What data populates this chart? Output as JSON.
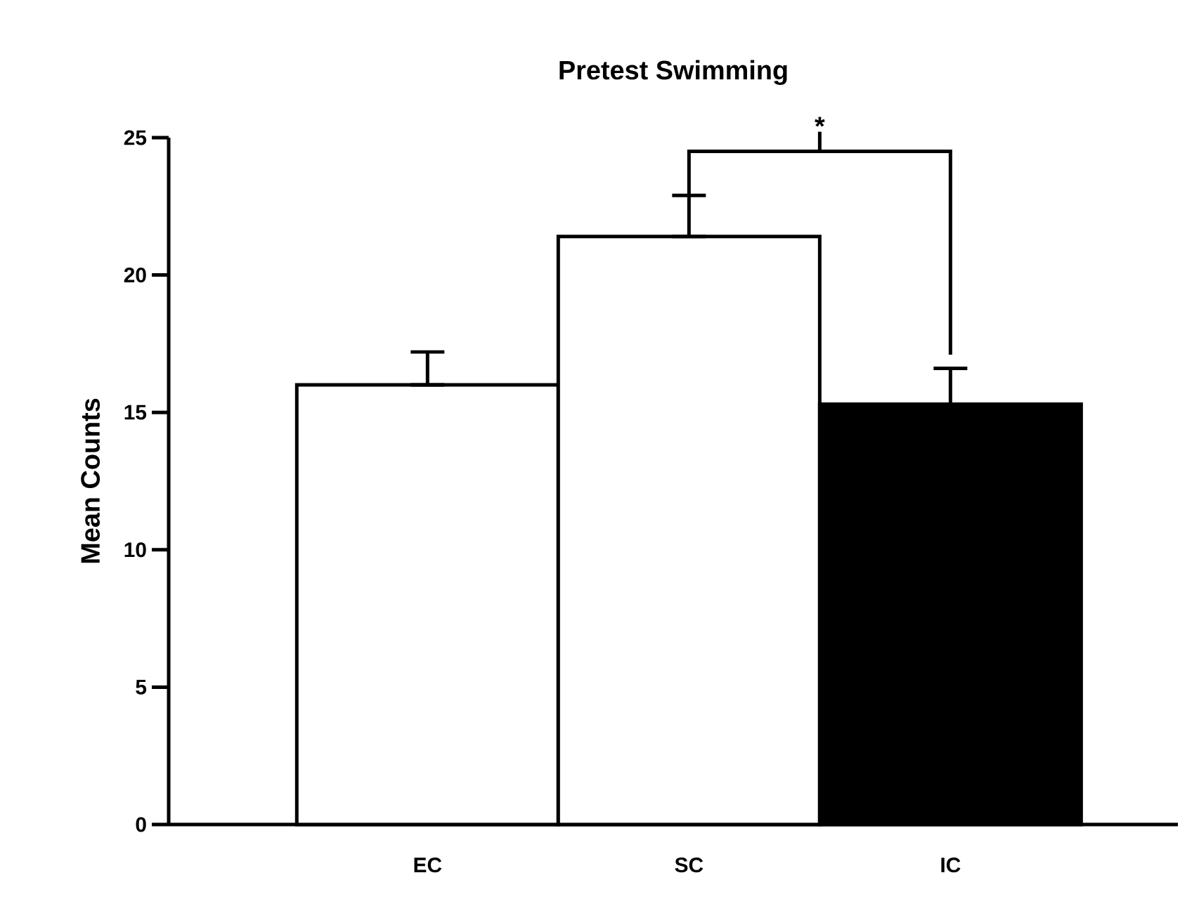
{
  "chart_data": {
    "type": "bar",
    "title": "Pretest Swimming",
    "ylabel": "Mean Counts",
    "categories": [
      "EC",
      "SC",
      "IC"
    ],
    "values": [
      16.0,
      21.4,
      15.3
    ],
    "colors": [
      "#ffffff",
      "#ffffff",
      "#000000"
    ],
    "errors": [
      [
        16.0,
        17.2
      ],
      [
        21.4,
        22.9
      ],
      [
        15.3,
        16.6
      ]
    ],
    "ylim": [
      0,
      25
    ],
    "yticks": [
      0,
      5,
      10,
      15,
      20,
      25
    ],
    "grid": false,
    "annotations": [
      "*"
    ]
  }
}
